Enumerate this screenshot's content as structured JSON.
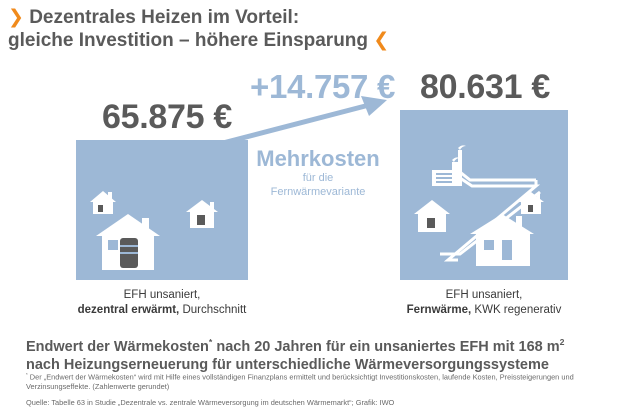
{
  "title": {
    "line1": "Dezentrales Heizen im Vorteil:",
    "line2": "gleiche Investition – höhere Einsparung",
    "chevron_left": "❯",
    "chevron_right": "❮"
  },
  "left": {
    "amount": "65.875 €",
    "caption_line1": "EFH unsaniert,",
    "caption_bold": "dezentral erwärmt,",
    "caption_rest": " Durchschnitt"
  },
  "right": {
    "amount": "80.631 €",
    "caption_line1": "EFH unsaniert,",
    "caption_bold": "Fernwärme,",
    "caption_rest": " KWK regenerativ"
  },
  "difference": {
    "amount": "+14.757 €",
    "label": "Mehrkosten",
    "sub1": "für die",
    "sub2": "Fernwärmevariante"
  },
  "heading": {
    "line1_pre": "Endwert der Wärmekosten",
    "line1_sup": "*",
    "line1_mid": " nach 20 Jahren für ein unsaniertes EFH mit 168 m",
    "line1_sup2": "2",
    "line2": "nach Heizungserneuerung für unterschiedliche Wärmeversorgungssysteme"
  },
  "footnote": {
    "marker": "*",
    "text": " Der „Endwert der Wärmekosten“ wird mit Hilfe eines vollständigen Finanzplans ermittelt und berücksichtigt Investitionskosten, laufende Kosten, Preissteigerungen und Verzinsungseffekte. (Zahlenwerte gerundet)"
  },
  "source": "Quelle: Tabelle 63 in Studie „Dezentrale vs. zentrale Wärmeversorgung im deutschen Wärmemarkt“; Grafik: IWO",
  "colors": {
    "accent_orange": "#f08a1c",
    "panel_blue": "#9db8d6",
    "text_gray": "#5a5a5a"
  }
}
